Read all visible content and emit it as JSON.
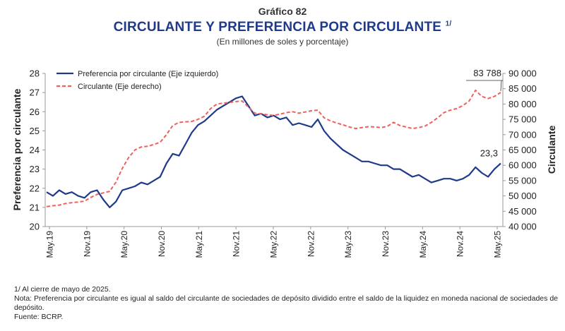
{
  "header": {
    "label": "Gráfico 82",
    "title": "CIRCULANTE Y PREFERENCIA POR CIRCULANTE",
    "title_note": "1/",
    "subtitle": "(En millones de soles y porcentaje)"
  },
  "notes": {
    "n1": "1/ Al cierre de mayo de 2025.",
    "n2": "Nota: Preferencia por circulante es igual al saldo del circulante de sociedades de depósito dividido entre el saldo de la liquidez en moneda nacional de sociedades de depósito.",
    "n3": "Fuente: BCRP."
  },
  "colors": {
    "blue": "#1f3a8a",
    "red": "#f0605d",
    "axis": "#999999"
  },
  "chart_data": {
    "type": "line",
    "ylabel": "Preferencia por circulante",
    "y2label": "Circulante",
    "ylim": [
      20,
      28
    ],
    "y2lim": [
      40000,
      90000
    ],
    "yticks": [
      "28",
      "27",
      "26",
      "25",
      "24",
      "23",
      "22",
      "21",
      "20"
    ],
    "y2ticks": [
      "90 000",
      "85 000",
      "80 000",
      "75 000",
      "70 000",
      "65 000",
      "60 000",
      "55 000",
      "50 000",
      "45 000",
      "40 000"
    ],
    "xticks": [
      "May.19",
      "Nov.19",
      "May.20",
      "Nov.20",
      "May.21",
      "Nov.21",
      "May.22",
      "Nov.22",
      "May.23",
      "Nov.23",
      "May.24",
      "Nov.24",
      "May.25"
    ],
    "annotations": {
      "last_left": "23,3",
      "last_right": "83 788"
    },
    "grid": false,
    "legend": "top-left",
    "series": [
      {
        "name": "Preferencia por circulante (Eje izquierdo)",
        "axis": "left",
        "style": "solid",
        "x": [
          "May.19",
          "Jun.19",
          "Jul.19",
          "Ago.19",
          "Set.19",
          "Oct.19",
          "Nov.19",
          "Dic.19",
          "Ene.20",
          "Feb.20",
          "Mar.20",
          "Abr.20",
          "May.20",
          "Jun.20",
          "Jul.20",
          "Ago.20",
          "Set.20",
          "Oct.20",
          "Nov.20",
          "Dic.20",
          "Ene.21",
          "Feb.21",
          "Mar.21",
          "Abr.21",
          "May.21",
          "Jun.21",
          "Jul.21",
          "Ago.21",
          "Set.21",
          "Oct.21",
          "Nov.21",
          "Dic.21",
          "Ene.22",
          "Feb.22",
          "Mar.22",
          "Abr.22",
          "May.22",
          "Jun.22",
          "Jul.22",
          "Ago.22",
          "Set.22",
          "Oct.22",
          "Nov.22",
          "Dic.22",
          "Ene.23",
          "Feb.23",
          "Mar.23",
          "Abr.23",
          "May.23",
          "Jun.23",
          "Jul.23",
          "Ago.23",
          "Set.23",
          "Oct.23",
          "Nov.23",
          "Dic.23",
          "Ene.24",
          "Feb.24",
          "Mar.24",
          "Abr.24",
          "May.24",
          "Jun.24",
          "Jul.24",
          "Ago.24",
          "Set.24",
          "Oct.24",
          "Nov.24",
          "Dic.24",
          "Ene.25",
          "Feb.25",
          "Mar.25",
          "Abr.25",
          "May.25"
        ],
        "values": [
          21.8,
          21.6,
          21.9,
          21.7,
          21.8,
          21.6,
          21.5,
          21.8,
          21.9,
          21.4,
          21.0,
          21.3,
          21.9,
          22.0,
          22.1,
          22.3,
          22.2,
          22.4,
          22.6,
          23.3,
          23.8,
          23.7,
          24.3,
          24.9,
          25.3,
          25.5,
          25.8,
          26.1,
          26.3,
          26.5,
          26.7,
          26.8,
          26.3,
          25.8,
          25.9,
          25.7,
          25.8,
          25.6,
          25.7,
          25.3,
          25.4,
          25.3,
          25.2,
          25.6,
          25.0,
          24.6,
          24.3,
          24.0,
          23.8,
          23.6,
          23.4,
          23.4,
          23.3,
          23.2,
          23.2,
          23.0,
          23.0,
          22.8,
          22.6,
          22.7,
          22.5,
          22.3,
          22.4,
          22.5,
          22.5,
          22.4,
          22.5,
          22.7,
          23.1,
          22.8,
          22.6,
          23.0,
          23.3
        ]
      },
      {
        "name": "Circulante (Eje derecho)",
        "axis": "right",
        "style": "dashed",
        "x": [
          "May.19",
          "Jun.19",
          "Jul.19",
          "Ago.19",
          "Set.19",
          "Oct.19",
          "Nov.19",
          "Dic.19",
          "Ene.20",
          "Feb.20",
          "Mar.20",
          "Abr.20",
          "May.20",
          "Jun.20",
          "Jul.20",
          "Ago.20",
          "Set.20",
          "Oct.20",
          "Nov.20",
          "Dic.20",
          "Ene.21",
          "Feb.21",
          "Mar.21",
          "Abr.21",
          "May.21",
          "Jun.21",
          "Jul.21",
          "Ago.21",
          "Set.21",
          "Oct.21",
          "Nov.21",
          "Dic.21",
          "Ene.22",
          "Feb.22",
          "Mar.22",
          "Abr.22",
          "May.22",
          "Jun.22",
          "Jul.22",
          "Ago.22",
          "Set.22",
          "Oct.22",
          "Nov.22",
          "Dic.22",
          "Ene.23",
          "Feb.23",
          "Mar.23",
          "Abr.23",
          "May.23",
          "Jun.23",
          "Jul.23",
          "Ago.23",
          "Set.23",
          "Oct.23",
          "Nov.23",
          "Dic.23",
          "Ene.24",
          "Feb.24",
          "Mar.24",
          "Abr.24",
          "May.24",
          "Jun.24",
          "Jul.24",
          "Ago.24",
          "Set.24",
          "Oct.24",
          "Nov.24",
          "Dic.24",
          "Ene.25",
          "Feb.25",
          "Mar.25",
          "Abr.25",
          "May.25"
        ],
        "values": [
          46500,
          46800,
          47000,
          47500,
          47800,
          48000,
          48300,
          49500,
          50500,
          51000,
          51500,
          54500,
          59000,
          62500,
          65000,
          66000,
          66200,
          66800,
          67500,
          70000,
          73000,
          74000,
          74200,
          74300,
          75000,
          76000,
          78500,
          80000,
          80300,
          80500,
          80800,
          81000,
          79000,
          77000,
          76800,
          76500,
          76300,
          76700,
          77200,
          77500,
          77000,
          77400,
          77800,
          78000,
          75500,
          74500,
          73800,
          73200,
          72500,
          72000,
          72300,
          72600,
          72500,
          72300,
          72700,
          74000,
          73000,
          72500,
          72000,
          72300,
          72800,
          74000,
          75500,
          77200,
          78000,
          78500,
          79500,
          81000,
          84500,
          82500,
          81800,
          82500,
          83788
        ]
      }
    ]
  }
}
